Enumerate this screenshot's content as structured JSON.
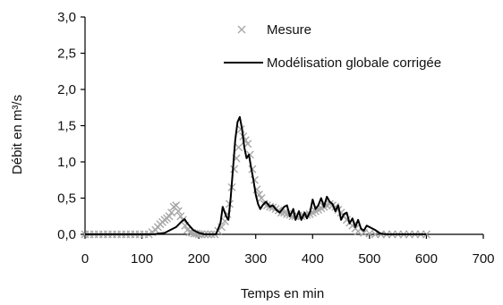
{
  "chart_data": {
    "type": "line",
    "xlabel": "Temps en min",
    "ylabel": "Débit en m³/s",
    "xlim": [
      0,
      700
    ],
    "ylim": [
      0,
      3.0
    ],
    "x_ticks": [
      0,
      100,
      200,
      300,
      400,
      500,
      600,
      700
    ],
    "y_ticks": [
      0,
      0.5,
      1.0,
      1.5,
      2.0,
      2.5,
      3.0
    ],
    "x_tick_labels": [
      "0",
      "100",
      "200",
      "300",
      "400",
      "500",
      "600",
      "700"
    ],
    "y_tick_labels": [
      "0,0",
      "0,5",
      "1,0",
      "1,5",
      "2,0",
      "2,5",
      "3,0"
    ],
    "grid": false,
    "legend_position": "top-right",
    "series": [
      {
        "name": "Mesure",
        "kind": "scatter",
        "marker": "x",
        "color": "#a8a8a8",
        "x": [
          0,
          8,
          16,
          24,
          32,
          40,
          48,
          56,
          64,
          72,
          80,
          88,
          96,
          104,
          112,
          118,
          124,
          128,
          132,
          136,
          140,
          144,
          148,
          152,
          156,
          160,
          164,
          168,
          172,
          176,
          180,
          184,
          188,
          192,
          196,
          200,
          204,
          210,
          216,
          222,
          228,
          234,
          240,
          246,
          250,
          254,
          258,
          262,
          266,
          270,
          274,
          278,
          282,
          286,
          290,
          294,
          298,
          302,
          306,
          310,
          315,
          320,
          325,
          330,
          335,
          340,
          345,
          350,
          355,
          360,
          365,
          370,
          375,
          380,
          385,
          390,
          395,
          400,
          405,
          410,
          415,
          420,
          425,
          430,
          435,
          440,
          445,
          450,
          455,
          460,
          465,
          470,
          475,
          480,
          490,
          500,
          510,
          520,
          530,
          540,
          550,
          560,
          570,
          580,
          590,
          600
        ],
        "y": [
          0,
          0,
          0,
          0,
          0,
          0,
          0,
          0,
          0,
          0,
          0,
          0,
          0,
          0,
          0,
          0.03,
          0.06,
          0.1,
          0.14,
          0.17,
          0.2,
          0.22,
          0.25,
          0.3,
          0.38,
          0.4,
          0.32,
          0.25,
          0.2,
          0.12,
          0.06,
          0.03,
          0.02,
          0.01,
          0.01,
          0,
          0,
          0,
          0,
          0,
          0,
          0.05,
          0.1,
          0.18,
          0.28,
          0.42,
          0.65,
          0.9,
          1.05,
          1.2,
          1.45,
          1.35,
          1.3,
          1.25,
          1.1,
          0.9,
          0.75,
          0.62,
          0.55,
          0.5,
          0.42,
          0.4,
          0.38,
          0.37,
          0.35,
          0.33,
          0.3,
          0.3,
          0.28,
          0.27,
          0.25,
          0.25,
          0.24,
          0.25,
          0.26,
          0.27,
          0.28,
          0.3,
          0.32,
          0.34,
          0.36,
          0.38,
          0.4,
          0.42,
          0.4,
          0.38,
          0.34,
          0.3,
          0.25,
          0.2,
          0.16,
          0.12,
          0.08,
          0.04,
          0.02,
          0.01,
          0,
          0,
          0,
          0,
          0,
          0,
          0,
          0,
          0,
          0
        ]
      },
      {
        "name": "Modélisation globale corrigée",
        "kind": "line",
        "color": "#000000",
        "x": [
          0,
          120,
          140,
          160,
          170,
          175,
          180,
          190,
          200,
          210,
          220,
          230,
          238,
          242,
          248,
          252,
          256,
          260,
          264,
          268,
          272,
          276,
          280,
          284,
          288,
          292,
          296,
          300,
          304,
          308,
          312,
          318,
          325,
          330,
          336,
          342,
          350,
          355,
          360,
          366,
          370,
          376,
          380,
          386,
          390,
          396,
          400,
          405,
          410,
          415,
          420,
          425,
          430,
          435,
          440,
          445,
          450,
          455,
          460,
          465,
          470,
          475,
          480,
          485,
          490,
          495,
          500,
          505,
          510,
          515,
          520,
          530,
          600
        ],
        "y": [
          0,
          0,
          0.02,
          0.1,
          0.18,
          0.21,
          0.15,
          0.06,
          0.02,
          0,
          0,
          0,
          0.15,
          0.38,
          0.25,
          0.2,
          0.5,
          0.9,
          1.3,
          1.55,
          1.62,
          1.45,
          1.2,
          1.05,
          1.1,
          0.92,
          0.75,
          0.55,
          0.42,
          0.35,
          0.4,
          0.45,
          0.38,
          0.4,
          0.34,
          0.3,
          0.38,
          0.4,
          0.25,
          0.35,
          0.2,
          0.32,
          0.2,
          0.3,
          0.22,
          0.32,
          0.48,
          0.35,
          0.4,
          0.5,
          0.38,
          0.52,
          0.45,
          0.42,
          0.32,
          0.4,
          0.2,
          0.28,
          0.3,
          0.15,
          0.22,
          0.1,
          0.2,
          0.08,
          0.05,
          0.12,
          0.1,
          0.08,
          0.06,
          0.03,
          0.01,
          0,
          0
        ]
      }
    ]
  }
}
